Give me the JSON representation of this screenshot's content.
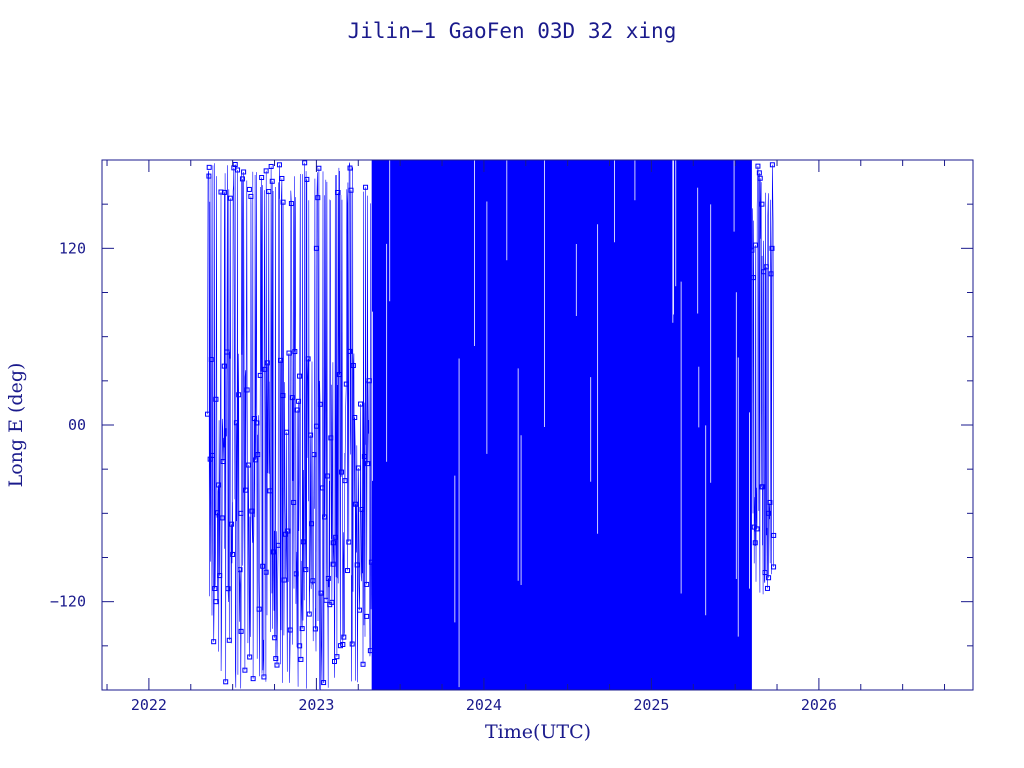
{
  "chart_data": {
    "type": "scatter",
    "title": "Jilin−1 GaoFen 03D 32 xing",
    "xlabel": "Time(UTC)",
    "ylabel": "Long E (deg)",
    "xlim": [
      2021.72,
      2026.92
    ],
    "ylim": [
      -180,
      180
    ],
    "x_ticks": [
      2022,
      2023,
      2024,
      2025,
      2026
    ],
    "x_tick_labels": [
      "2022",
      "2023",
      "2024",
      "2025",
      "2026"
    ],
    "y_ticks": [
      -120,
      0,
      120
    ],
    "y_tick_labels": [
      "−120",
      "00",
      "120"
    ],
    "grid": false,
    "series": [
      {
        "marker": "small square",
        "line": "thin connecting line",
        "color": "#0000ff",
        "x_range": [
          2022.35,
          2025.73
        ],
        "y_range": [
          -180,
          180
        ],
        "segments": [
          {
            "x": [
              2022.35,
              2023.33
            ],
            "density": "sparse",
            "sampled_points": [
              [
                2022.36,
                175
              ],
              [
                2022.4,
                -120
              ],
              [
                2022.45,
                40
              ],
              [
                2022.55,
                -60
              ],
              [
                2022.6,
                160
              ],
              [
                2022.7,
                -100
              ],
              [
                2022.8,
                20
              ],
              [
                2022.9,
                -150
              ],
              [
                2023.0,
                120
              ],
              [
                2023.1,
                -80
              ],
              [
                2023.2,
                50
              ],
              [
                2023.3,
                -130
              ]
            ]
          },
          {
            "x": [
              2023.33,
              2025.6
            ],
            "density": "dense",
            "covers_full_y_range": true
          },
          {
            "x": [
              2025.6,
              2025.73
            ],
            "density": "sparse",
            "sampled_points": [
              [
                2025.62,
                -80
              ],
              [
                2025.66,
                150
              ],
              [
                2025.7,
                -60
              ],
              [
                2025.72,
                120
              ],
              [
                2025.73,
                -75
              ]
            ]
          }
        ]
      }
    ]
  },
  "colors": {
    "axis": "#1a1a8c",
    "data": "#0000ff",
    "background": "#ffffff"
  }
}
